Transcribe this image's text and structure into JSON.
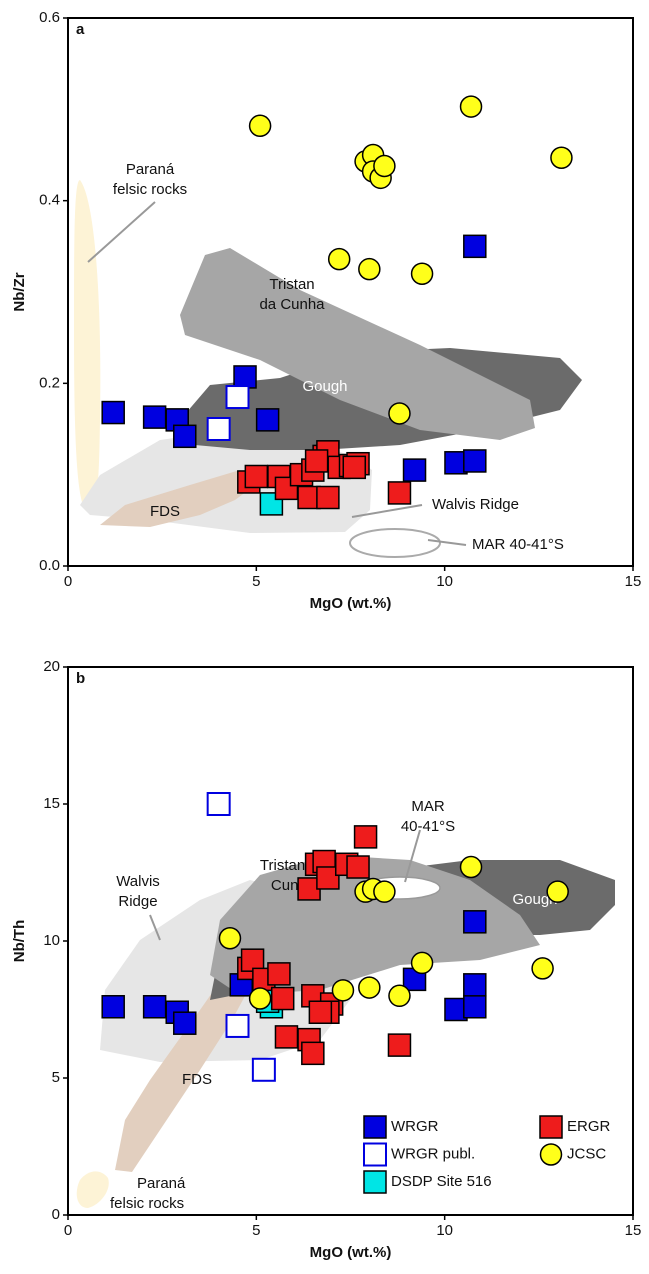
{
  "chart_data": [
    {
      "type": "scatter",
      "panel_label": "a",
      "x_label": "MgO (wt.%)",
      "y_label": "Nb/Zr",
      "xlim": [
        0,
        15
      ],
      "xticks": [
        0,
        5,
        10,
        15
      ],
      "ylim": [
        0,
        0.6
      ],
      "yticks": [
        {
          "value": 0,
          "label": "0.0"
        },
        0.2,
        0.4,
        0.6
      ],
      "legend": false,
      "annotations": [
        "Paraná",
        "felsic rocks",
        "Tristan",
        "da Cunha",
        "Gough",
        "FDS",
        "Walvis Ridge",
        "MAR 40-41°S"
      ],
      "series": [
        {
          "name": "WRGR",
          "color": "#0000e0",
          "marker": "square",
          "filled": true,
          "x": [
            1.2,
            2.3,
            2.9,
            3.1,
            4.7,
            5.3,
            9.2,
            10.3,
            10.8,
            10.8
          ],
          "values": [
            0.168,
            0.163,
            0.16,
            0.142,
            0.207,
            0.16,
            0.105,
            0.113,
            0.115,
            0.35
          ]
        },
        {
          "name": "WRGR publ.",
          "color": "#0000e0",
          "marker": "square",
          "filled": false,
          "x": [
            4.0,
            4.5
          ],
          "values": [
            0.15,
            0.185
          ]
        },
        {
          "name": "DSDP Site 516",
          "color": "#00e5e5",
          "marker": "square",
          "filled": true,
          "x": [
            5.4
          ],
          "values": [
            0.068
          ]
        },
        {
          "name": "ERGR",
          "color": "#ee1c1c",
          "marker": "square",
          "filled": true,
          "x": [
            4.8,
            5.0,
            5.6,
            5.8,
            6.2,
            6.5,
            6.4,
            6.8,
            6.9,
            6.9,
            7.2,
            7.5,
            7.7,
            8.8,
            6.6,
            7.6
          ],
          "values": [
            0.092,
            0.098,
            0.098,
            0.085,
            0.1,
            0.105,
            0.075,
            0.12,
            0.125,
            0.075,
            0.108,
            0.11,
            0.112,
            0.08,
            0.115,
            0.108
          ]
        },
        {
          "name": "JCSC",
          "color": "#ffff1a",
          "marker": "circle",
          "filled": true,
          "x": [
            5.1,
            7.2,
            8.0,
            7.9,
            8.1,
            8.1,
            8.3,
            8.4,
            9.4,
            10.7,
            13.1,
            8.8
          ],
          "values": [
            0.482,
            0.336,
            0.325,
            0.443,
            0.45,
            0.432,
            0.425,
            0.438,
            0.32,
            0.503,
            0.447,
            0.167
          ]
        }
      ]
    },
    {
      "type": "scatter",
      "panel_label": "b",
      "x_label": "MgO (wt.%)",
      "y_label": "Nb/Th",
      "xlim": [
        0,
        15
      ],
      "xticks": [
        0,
        5,
        10,
        15
      ],
      "ylim": [
        0,
        20
      ],
      "yticks": [
        0,
        5,
        10,
        15,
        20
      ],
      "legend": true,
      "legend_corner": "lower right",
      "annotations": [
        "Walvis",
        "Ridge",
        "Tristan da",
        "Cunha",
        "MAR",
        "40-41°S",
        "Gough",
        "FDS",
        "Paraná",
        "felsic rocks"
      ],
      "series": [
        {
          "name": "WRGR",
          "color": "#0000e0",
          "marker": "square",
          "filled": true,
          "x": [
            1.2,
            2.3,
            2.9,
            3.1,
            4.6,
            9.2,
            10.3,
            10.8,
            10.8,
            10.8
          ],
          "values": [
            7.6,
            7.6,
            7.4,
            7.0,
            8.4,
            8.6,
            7.5,
            7.6,
            8.4,
            10.7
          ]
        },
        {
          "name": "WRGR publ.",
          "color": "#0000e0",
          "marker": "square",
          "filled": false,
          "x": [
            4.0,
            4.5,
            5.2
          ],
          "values": [
            15.0,
            6.9,
            5.3
          ]
        },
        {
          "name": "DSDP Site 516",
          "color": "#00e5e5",
          "marker": "square",
          "filled": true,
          "x": [
            5.4,
            5.3
          ],
          "values": [
            7.6,
            7.8
          ]
        },
        {
          "name": "ERGR",
          "color": "#ee1c1c",
          "marker": "square",
          "filled": true,
          "x": [
            4.8,
            4.9,
            5.2,
            5.6,
            5.7,
            5.8,
            6.4,
            6.5,
            6.5,
            6.4,
            6.6,
            6.8,
            6.9,
            7.0,
            6.9,
            7.4,
            7.7,
            7.9,
            8.8,
            6.7
          ],
          "values": [
            9.0,
            9.3,
            8.6,
            8.8,
            7.9,
            6.5,
            6.4,
            8.0,
            5.9,
            11.9,
            12.8,
            12.9,
            12.3,
            7.7,
            7.4,
            12.8,
            12.7,
            13.8,
            6.2,
            7.4
          ]
        },
        {
          "name": "JCSC",
          "color": "#ffff1a",
          "marker": "circle",
          "filled": true,
          "x": [
            4.3,
            5.1,
            7.3,
            7.9,
            8.1,
            8.4,
            8.0,
            8.8,
            9.4,
            10.7,
            12.6,
            13.0
          ],
          "values": [
            10.1,
            7.9,
            8.2,
            11.8,
            11.9,
            11.8,
            8.3,
            8.0,
            9.2,
            12.7,
            9.0,
            11.8
          ]
        }
      ]
    }
  ]
}
